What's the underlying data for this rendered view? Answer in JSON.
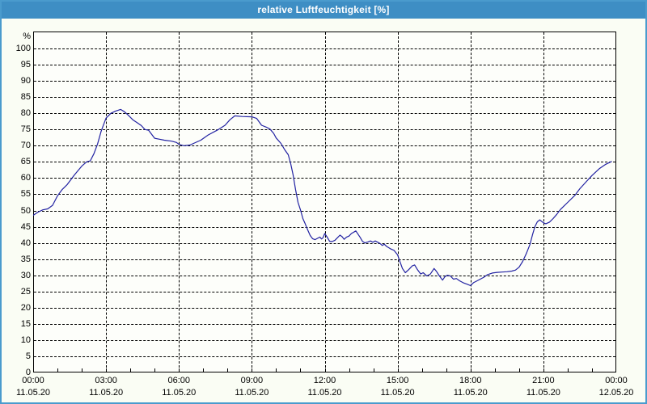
{
  "title_bar": {
    "title": "relative Luftfeuchtigkeit [%]"
  },
  "colors": {
    "title_bg": "#3e8ec4",
    "title_text": "#ffffff",
    "window_border": "#4a9bcd",
    "chart_bg": "#fafdf4",
    "plot_bg": "#fdfefa",
    "axis": "#000000",
    "line": "#2222a2"
  },
  "chart_data": {
    "type": "line",
    "title": "relative Luftfeuchtigkeit [%]",
    "xlabel": "",
    "ylabel": "%",
    "ylim": [
      0,
      100
    ],
    "ytick_step": 5,
    "yticks": [
      0,
      5,
      10,
      15,
      20,
      25,
      30,
      35,
      40,
      45,
      50,
      55,
      60,
      65,
      70,
      75,
      80,
      85,
      90,
      95,
      100
    ],
    "xlim_hours": [
      0,
      24
    ],
    "grid": "dashed",
    "x_minor_tick_every_hours": 1,
    "x_major_gridline_every_hours": 3,
    "x_axis_labels": [
      {
        "hour": 0,
        "time": "00:00",
        "date": "11.05.20"
      },
      {
        "hour": 3,
        "time": "03:00",
        "date": "11.05.20"
      },
      {
        "hour": 6,
        "time": "06:00",
        "date": "11.05.20"
      },
      {
        "hour": 9,
        "time": "09:00",
        "date": "11.05.20"
      },
      {
        "hour": 12,
        "time": "12:00",
        "date": "11.05.20"
      },
      {
        "hour": 15,
        "time": "15:00",
        "date": "11.05.20"
      },
      {
        "hour": 18,
        "time": "18:00",
        "date": "11.05.20"
      },
      {
        "hour": 21,
        "time": "21:00",
        "date": "11.05.20"
      },
      {
        "hour": 24,
        "time": "00:00",
        "date": "12.05.20"
      }
    ],
    "series": [
      {
        "name": "relative Luftfeuchtigkeit",
        "color": "#2222a2",
        "points": [
          [
            0.0,
            48.5
          ],
          [
            0.2,
            49.5
          ],
          [
            0.4,
            50.2
          ],
          [
            0.6,
            50.5
          ],
          [
            0.8,
            51.6
          ],
          [
            1.0,
            54.5
          ],
          [
            1.2,
            56.5
          ],
          [
            1.4,
            58.0
          ],
          [
            1.7,
            61.0
          ],
          [
            2.0,
            63.7
          ],
          [
            2.2,
            65.0
          ],
          [
            2.35,
            65.3
          ],
          [
            2.5,
            67.5
          ],
          [
            2.65,
            70.5
          ],
          [
            2.8,
            74.5
          ],
          [
            3.0,
            78.5
          ],
          [
            3.2,
            80.0
          ],
          [
            3.4,
            80.7
          ],
          [
            3.6,
            81.2
          ],
          [
            3.75,
            80.5
          ],
          [
            3.9,
            79.5
          ],
          [
            4.1,
            78.0
          ],
          [
            4.3,
            77.0
          ],
          [
            4.45,
            76.2
          ],
          [
            4.6,
            75.0
          ],
          [
            4.75,
            74.8
          ],
          [
            4.9,
            73.3
          ],
          [
            5.0,
            72.3
          ],
          [
            5.2,
            72.0
          ],
          [
            5.4,
            71.7
          ],
          [
            5.7,
            71.4
          ],
          [
            5.9,
            71.0
          ],
          [
            6.0,
            70.4
          ],
          [
            6.2,
            70.0
          ],
          [
            6.45,
            70.2
          ],
          [
            6.6,
            70.7
          ],
          [
            6.9,
            71.7
          ],
          [
            7.2,
            73.3
          ],
          [
            7.6,
            74.9
          ],
          [
            7.9,
            76.3
          ],
          [
            8.1,
            78.0
          ],
          [
            8.3,
            79.2
          ],
          [
            8.6,
            79.0
          ],
          [
            9.0,
            78.9
          ],
          [
            9.2,
            78.4
          ],
          [
            9.4,
            76.3
          ],
          [
            9.6,
            75.7
          ],
          [
            9.75,
            75.1
          ],
          [
            9.9,
            73.8
          ],
          [
            10.0,
            72.4
          ],
          [
            10.2,
            70.7
          ],
          [
            10.35,
            68.8
          ],
          [
            10.5,
            67.2
          ],
          [
            10.6,
            64.5
          ],
          [
            10.7,
            61.0
          ],
          [
            10.8,
            56.5
          ],
          [
            10.9,
            52.5
          ],
          [
            11.0,
            50.2
          ],
          [
            11.1,
            47.5
          ],
          [
            11.2,
            45.8
          ],
          [
            11.3,
            44.0
          ],
          [
            11.4,
            42.3
          ],
          [
            11.5,
            41.3
          ],
          [
            11.6,
            41.0
          ],
          [
            11.7,
            41.4
          ],
          [
            11.8,
            41.8
          ],
          [
            11.87,
            41.2
          ],
          [
            11.93,
            41.6
          ],
          [
            12.0,
            42.9
          ],
          [
            12.1,
            41.8
          ],
          [
            12.2,
            40.5
          ],
          [
            12.3,
            40.4
          ],
          [
            12.42,
            40.8
          ],
          [
            12.55,
            41.8
          ],
          [
            12.63,
            42.4
          ],
          [
            12.72,
            41.9
          ],
          [
            12.8,
            41.1
          ],
          [
            12.9,
            41.8
          ],
          [
            13.0,
            42.1
          ],
          [
            13.1,
            42.9
          ],
          [
            13.28,
            43.7
          ],
          [
            13.45,
            41.8
          ],
          [
            13.55,
            40.5
          ],
          [
            13.65,
            40.0
          ],
          [
            13.78,
            40.3
          ],
          [
            13.88,
            40.6
          ],
          [
            13.98,
            40.2
          ],
          [
            14.08,
            40.6
          ],
          [
            14.18,
            40.2
          ],
          [
            14.28,
            39.8
          ],
          [
            14.37,
            39.2
          ],
          [
            14.45,
            39.6
          ],
          [
            14.55,
            38.9
          ],
          [
            14.7,
            38.2
          ],
          [
            14.85,
            37.7
          ],
          [
            15.0,
            36.3
          ],
          [
            15.1,
            34.2
          ],
          [
            15.2,
            32.1
          ],
          [
            15.32,
            30.8
          ],
          [
            15.45,
            31.7
          ],
          [
            15.6,
            32.9
          ],
          [
            15.7,
            33.2
          ],
          [
            15.82,
            31.7
          ],
          [
            15.95,
            30.4
          ],
          [
            16.05,
            30.8
          ],
          [
            16.2,
            29.8
          ],
          [
            16.35,
            30.4
          ],
          [
            16.5,
            32.1
          ],
          [
            16.6,
            31.2
          ],
          [
            16.72,
            29.8
          ],
          [
            16.85,
            28.5
          ],
          [
            16.95,
            29.6
          ],
          [
            17.05,
            30.0
          ],
          [
            17.17,
            29.8
          ],
          [
            17.3,
            28.8
          ],
          [
            17.42,
            29.0
          ],
          [
            17.55,
            28.3
          ],
          [
            17.7,
            27.7
          ],
          [
            17.88,
            27.2
          ],
          [
            18.0,
            26.8
          ],
          [
            18.12,
            27.7
          ],
          [
            18.25,
            28.2
          ],
          [
            18.4,
            28.8
          ],
          [
            18.55,
            29.4
          ],
          [
            18.7,
            30.2
          ],
          [
            18.9,
            30.7
          ],
          [
            19.1,
            30.9
          ],
          [
            19.3,
            31.0
          ],
          [
            19.5,
            31.1
          ],
          [
            19.7,
            31.3
          ],
          [
            19.85,
            31.6
          ],
          [
            20.0,
            32.5
          ],
          [
            20.15,
            34.3
          ],
          [
            20.3,
            36.7
          ],
          [
            20.45,
            39.6
          ],
          [
            20.55,
            42.5
          ],
          [
            20.65,
            45.0
          ],
          [
            20.75,
            46.5
          ],
          [
            20.85,
            47.1
          ],
          [
            21.0,
            46.2
          ],
          [
            21.1,
            45.9
          ],
          [
            21.25,
            46.4
          ],
          [
            21.4,
            47.5
          ],
          [
            21.55,
            48.8
          ],
          [
            21.7,
            50.3
          ],
          [
            22.0,
            52.5
          ],
          [
            22.3,
            54.7
          ],
          [
            22.5,
            56.7
          ],
          [
            22.8,
            59.2
          ],
          [
            23.0,
            60.8
          ],
          [
            23.3,
            62.9
          ],
          [
            23.55,
            64.2
          ],
          [
            23.8,
            65.1
          ]
        ]
      }
    ]
  }
}
